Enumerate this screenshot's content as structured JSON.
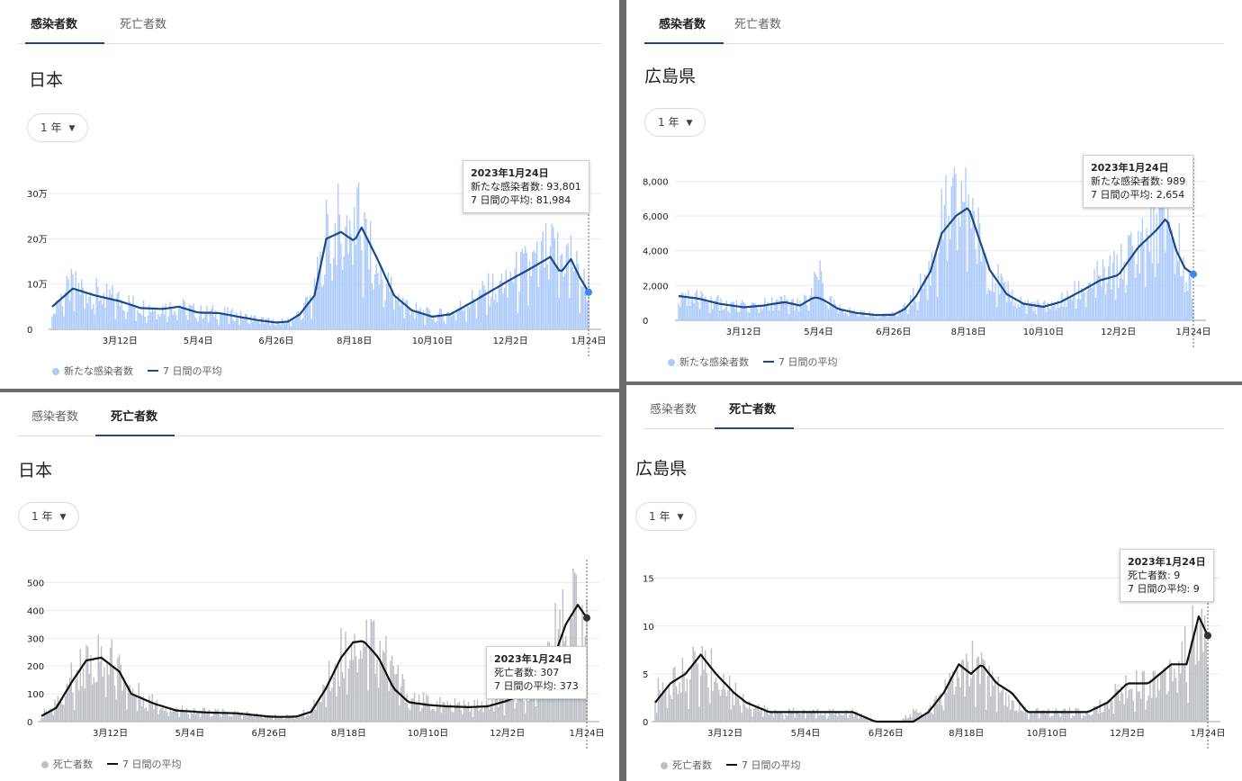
{
  "panels": [
    {
      "tabs": [
        "感染者数",
        "死亡者数"
      ],
      "active_tab": 0,
      "region": "日本",
      "period": "1 年",
      "tooltip": {
        "date": "2023年1月24日",
        "line1": "新たな感染者数: 93,801",
        "line2": "7 日間の平均: 81,984"
      },
      "legend": {
        "bars": "新たな感染者数",
        "line": "7 日間の平均"
      },
      "colors": {
        "bar": "#aecbfa",
        "line": "#1a4a8a",
        "dot": "#4285f4"
      }
    },
    {
      "tabs": [
        "感染者数",
        "死亡者数"
      ],
      "active_tab": 0,
      "region": "広島県",
      "period": "1 年",
      "tooltip": {
        "date": "2023年1月24日",
        "line1": "新たな感染者数: 989",
        "line2": "7 日間の平均: 2,654"
      },
      "legend": {
        "bars": "新たな感染者数",
        "line": "7 日間の平均"
      },
      "colors": {
        "bar": "#aecbfa",
        "line": "#1a4a8a",
        "dot": "#4285f4"
      }
    },
    {
      "tabs": [
        "感染者数",
        "死亡者数"
      ],
      "active_tab": 1,
      "region": "日本",
      "period": "1 年",
      "tooltip": {
        "date": "2023年1月24日",
        "line1": "死亡者数: 307",
        "line2": "7 日間の平均: 373"
      },
      "legend": {
        "bars": "死亡者数",
        "line": "7 日間の平均"
      },
      "colors": {
        "bar": "#bdc1c6",
        "line": "#111111",
        "dot": "#333333"
      }
    },
    {
      "tabs": [
        "感染者数",
        "死亡者数"
      ],
      "active_tab": 1,
      "region": "広島県",
      "period": "1 年",
      "tooltip": {
        "date": "2023年1月24日",
        "line1": "死亡者数: 9",
        "line2": "7 日間の平均: 9"
      },
      "legend": {
        "bars": "死亡者数",
        "line": "7 日間の平均"
      },
      "colors": {
        "bar": "#bdc1c6",
        "line": "#111111",
        "dot": "#333333"
      }
    }
  ],
  "chart_data": [
    {
      "type": "bar",
      "title": "日本",
      "y_tick_labels": [
        "0",
        "10万",
        "20万",
        "30万"
      ],
      "y_ticks": [
        0,
        100000,
        200000,
        300000
      ],
      "ylim": [
        0,
        330000
      ],
      "x_tick_labels": [
        "3月12日",
        "5月4日",
        "6月26日",
        "8月18日",
        "10月10日",
        "12月2日",
        "1月24日"
      ],
      "x_tick_days": [
        46,
        99,
        152,
        205,
        258,
        311,
        364
      ],
      "grid": true,
      "legend_position": "bottom-left",
      "series": [
        {
          "name": "新たな感染者数",
          "kind": "bar",
          "anchor_days": [
            0,
            14,
            29,
            46,
            60,
            75,
            86,
            99,
            113,
            126,
            140,
            152,
            160,
            168,
            178,
            186,
            196,
            205,
            210,
            220,
            232,
            244,
            258,
            270,
            285,
            298,
            311,
            325,
            338,
            345,
            352,
            358,
            364
          ],
          "anchor_values": [
            52000,
            95000,
            80000,
            65000,
            50000,
            48000,
            52000,
            38000,
            38000,
            30000,
            22000,
            16000,
            18000,
            35000,
            80000,
            210000,
            230000,
            240000,
            220000,
            130000,
            80000,
            45000,
            30000,
            35000,
            65000,
            90000,
            115000,
            140000,
            175000,
            160000,
            165000,
            110000,
            93801
          ]
        },
        {
          "name": "7 日間の平均",
          "kind": "line",
          "anchor_days": [
            0,
            14,
            29,
            46,
            60,
            75,
            86,
            99,
            113,
            126,
            140,
            152,
            160,
            168,
            178,
            186,
            196,
            205,
            210,
            220,
            232,
            244,
            258,
            270,
            285,
            298,
            311,
            325,
            338,
            345,
            352,
            358,
            364
          ],
          "anchor_values": [
            50000,
            90000,
            75000,
            62000,
            47000,
            45000,
            50000,
            37000,
            36000,
            28000,
            20000,
            15000,
            17000,
            33000,
            75000,
            200000,
            215000,
            195000,
            225000,
            160000,
            75000,
            42000,
            28000,
            33000,
            60000,
            85000,
            110000,
            135000,
            160000,
            125000,
            155000,
            115000,
            81984
          ]
        }
      ]
    },
    {
      "type": "bar",
      "title": "広島県",
      "y_tick_labels": [
        "0",
        "2,000",
        "4,000",
        "6,000",
        "8,000"
      ],
      "y_ticks": [
        0,
        2000,
        4000,
        6000,
        8000
      ],
      "ylim": [
        0,
        8800
      ],
      "x_tick_labels": [
        "3月12日",
        "5月4日",
        "6月26日",
        "8月18日",
        "10月10日",
        "12月2日",
        "1月24日"
      ],
      "x_tick_days": [
        46,
        99,
        152,
        205,
        258,
        311,
        364
      ],
      "grid": true,
      "legend_position": "bottom-left",
      "series": [
        {
          "name": "新たな感染者数",
          "kind": "bar",
          "anchor_days": [
            0,
            14,
            29,
            46,
            60,
            75,
            86,
            95,
            99,
            104,
            113,
            126,
            140,
            152,
            160,
            168,
            178,
            186,
            196,
            205,
            210,
            220,
            232,
            244,
            258,
            270,
            285,
            298,
            311,
            325,
            338,
            345,
            352,
            358,
            364
          ],
          "anchor_values": [
            1500,
            1300,
            1000,
            800,
            900,
            1100,
            900,
            1400,
            3600,
            1200,
            700,
            450,
            300,
            350,
            700,
            1500,
            3000,
            5500,
            6500,
            7500,
            5500,
            3000,
            1600,
            1000,
            800,
            1100,
            1800,
            2500,
            2900,
            4500,
            5500,
            6800,
            4500,
            3200,
            989
          ]
        },
        {
          "name": "7 日間の平均",
          "kind": "line",
          "anchor_days": [
            0,
            14,
            29,
            46,
            60,
            75,
            86,
            95,
            99,
            104,
            113,
            126,
            140,
            152,
            160,
            168,
            178,
            186,
            196,
            205,
            210,
            220,
            232,
            244,
            258,
            270,
            285,
            298,
            311,
            325,
            338,
            345,
            352,
            358,
            364
          ],
          "anchor_values": [
            1400,
            1250,
            950,
            750,
            850,
            1050,
            850,
            1300,
            1300,
            1100,
            650,
            420,
            300,
            320,
            650,
            1400,
            2800,
            5000,
            6000,
            6500,
            5300,
            2900,
            1500,
            950,
            780,
            1050,
            1700,
            2300,
            2600,
            4200,
            5200,
            5900,
            4000,
            3000,
            2654
          ]
        }
      ]
    },
    {
      "type": "bar",
      "title": "日本",
      "y_tick_labels": [
        "0",
        "100",
        "200",
        "300",
        "400",
        "500"
      ],
      "y_ticks": [
        0,
        100,
        200,
        300,
        400,
        500
      ],
      "ylim": [
        0,
        550
      ],
      "x_tick_labels": [
        "3月12日",
        "5月4日",
        "6月26日",
        "8月18日",
        "10月10日",
        "12月2日",
        "1月24日"
      ],
      "x_tick_days": [
        46,
        99,
        152,
        205,
        258,
        311,
        364
      ],
      "grid": true,
      "legend_position": "bottom-left",
      "series": [
        {
          "name": "死亡者数",
          "kind": "bar",
          "anchor_days": [
            0,
            10,
            20,
            30,
            40,
            52,
            60,
            75,
            90,
            110,
            130,
            145,
            152,
            160,
            170,
            180,
            190,
            200,
            208,
            215,
            225,
            235,
            245,
            258,
            270,
            285,
            298,
            311,
            325,
            340,
            350,
            358,
            364
          ],
          "anchor_values": [
            25,
            60,
            150,
            230,
            240,
            190,
            110,
            70,
            45,
            35,
            30,
            25,
            20,
            18,
            20,
            40,
            130,
            240,
            300,
            320,
            280,
            180,
            90,
            70,
            60,
            55,
            60,
            80,
            130,
            250,
            400,
            440,
            307
          ]
        },
        {
          "name": "7 日間の平均",
          "kind": "line",
          "anchor_days": [
            0,
            10,
            20,
            30,
            40,
            52,
            60,
            75,
            90,
            110,
            130,
            145,
            152,
            160,
            170,
            180,
            190,
            200,
            208,
            215,
            225,
            235,
            245,
            258,
            270,
            285,
            298,
            311,
            325,
            340,
            350,
            358,
            364
          ],
          "anchor_values": [
            20,
            50,
            140,
            220,
            230,
            180,
            100,
            65,
            40,
            33,
            30,
            22,
            18,
            17,
            18,
            35,
            120,
            230,
            285,
            290,
            230,
            120,
            70,
            60,
            55,
            52,
            55,
            75,
            110,
            200,
            350,
            420,
            373
          ]
        }
      ]
    },
    {
      "type": "bar",
      "title": "広島県",
      "y_tick_labels": [
        "0",
        "5",
        "10",
        "15"
      ],
      "y_ticks": [
        0,
        5,
        10,
        15
      ],
      "ylim": [
        0,
        16
      ],
      "x_tick_labels": [
        "3月12日",
        "5月4日",
        "6月26日",
        "8月18日",
        "10月10日",
        "12月2日",
        "1月24日"
      ],
      "x_tick_days": [
        46,
        99,
        152,
        205,
        258,
        311,
        364
      ],
      "grid": true,
      "legend_position": "bottom-left",
      "series": [
        {
          "name": "死亡者数",
          "kind": "bar",
          "anchor_days": [
            0,
            10,
            20,
            30,
            40,
            52,
            60,
            75,
            90,
            110,
            130,
            145,
            152,
            160,
            170,
            180,
            190,
            200,
            208,
            215,
            225,
            235,
            245,
            258,
            270,
            285,
            298,
            311,
            325,
            340,
            350,
            358,
            364
          ],
          "anchor_values": [
            3,
            4,
            5,
            6,
            5,
            3,
            2,
            1,
            1,
            1,
            1,
            0,
            0,
            0,
            1,
            1,
            3,
            5,
            6,
            5,
            4,
            2,
            1,
            1,
            1,
            1,
            2,
            4,
            4,
            6,
            7,
            10,
            9
          ]
        },
        {
          "name": "7 日間の平均",
          "kind": "line",
          "anchor_days": [
            0,
            10,
            20,
            30,
            40,
            52,
            60,
            75,
            90,
            110,
            130,
            145,
            152,
            160,
            170,
            180,
            190,
            200,
            208,
            215,
            225,
            235,
            245,
            258,
            270,
            285,
            298,
            311,
            325,
            340,
            350,
            358,
            364
          ],
          "anchor_values": [
            2,
            4,
            5,
            7,
            5,
            3,
            2,
            1,
            1,
            1,
            1,
            0,
            0,
            0,
            0,
            1,
            3,
            6,
            5,
            6,
            4,
            3,
            1,
            1,
            1,
            1,
            2,
            4,
            4,
            6,
            6,
            11,
            9
          ]
        }
      ]
    }
  ]
}
